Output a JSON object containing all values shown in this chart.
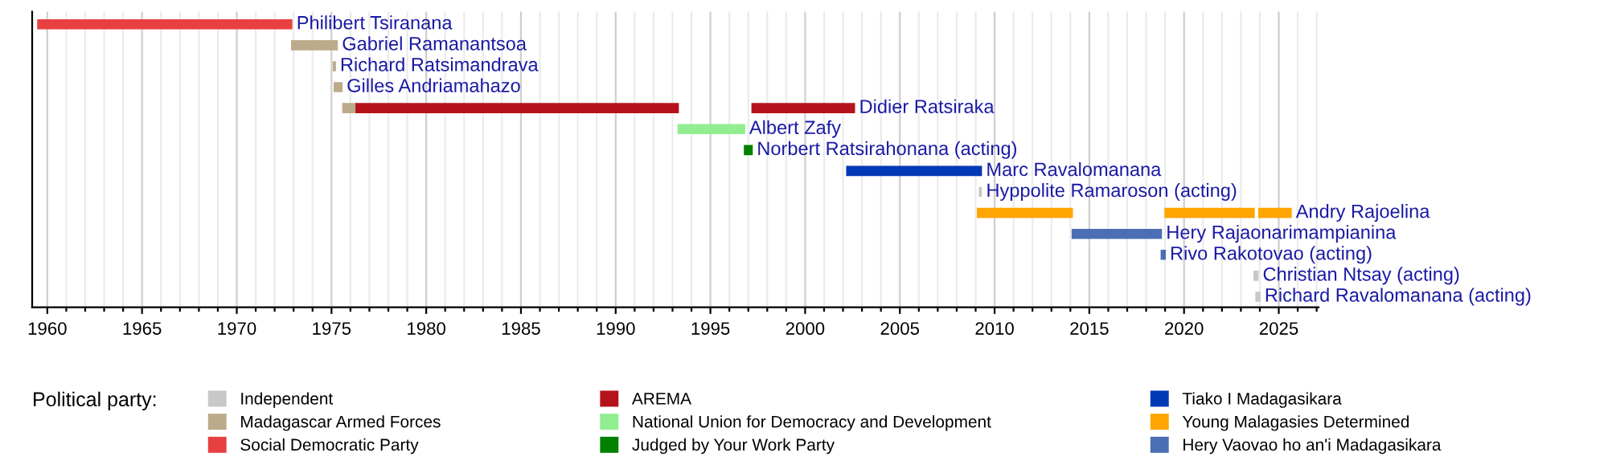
{
  "chart_data": {
    "type": "bar",
    "orientation": "horizontal",
    "categories": [
      "Philibert Tsiranana",
      "Gabriel Ramanantsoa",
      "Richard Ratsimandrava",
      "Gilles Andriamahazo",
      "Didier Ratsiraka",
      "Albert Zafy",
      "Norbert Ratsirahonana (acting)",
      "Marc Ravalomanana",
      "Hyppolite Ramaroson (acting)",
      "Andry Rajoelina",
      "Hery Rajaonarimampianina",
      "Rivo Rakotovao (acting)",
      "Christian Ntsay (acting)",
      "Richard Ravalomanana (acting)"
    ],
    "series": [
      {
        "name": "Independent",
        "color": "#c8c8c8",
        "base": [
          null,
          null,
          null,
          null,
          null,
          null,
          null,
          null,
          2009.2,
          null,
          null,
          null,
          2023.7,
          2023.8
        ],
        "values": [
          null,
          null,
          null,
          null,
          null,
          null,
          null,
          null,
          0.1,
          null,
          null,
          null,
          0.2,
          0.2
        ]
      },
      {
        "name": "Madagascar Armed Forces",
        "color": "#bcab8b",
        "base": [
          null,
          1972.9,
          1975.1,
          1975.15,
          1975.6,
          null,
          null,
          null,
          null,
          null,
          null,
          null,
          null,
          null
        ],
        "values": [
          null,
          2.4,
          0.1,
          0.4,
          0.7,
          null,
          null,
          null,
          null,
          null,
          null,
          null,
          null,
          null
        ]
      },
      {
        "name": "Social Democratic Party",
        "color": "#e84040",
        "base": [
          1959.5,
          null,
          null,
          null,
          null,
          null,
          null,
          null,
          null,
          null,
          null,
          null,
          null,
          null
        ],
        "values": [
          13.4,
          null,
          null,
          null,
          null,
          null,
          null,
          null,
          null,
          null,
          null,
          null,
          null,
          null
        ]
      },
      {
        "name": "AREMA",
        "color": "#b5121b",
        "base": [
          null,
          null,
          null,
          null,
          1976.3,
          null,
          null,
          null,
          null,
          null,
          null,
          null,
          null,
          null
        ],
        "values": [
          null,
          null,
          null,
          null,
          17.0,
          null,
          null,
          null,
          null,
          null,
          null,
          null,
          null,
          null
        ]
      },
      {
        "color": "#b5121b",
        "base": [
          null,
          null,
          null,
          null,
          1997.2,
          null,
          null,
          null,
          null,
          null,
          null,
          null,
          null,
          null
        ],
        "values": [
          null,
          null,
          null,
          null,
          5.4,
          null,
          null,
          null,
          null,
          null,
          null,
          null,
          null,
          null
        ]
      },
      {
        "name": "National Union for Democracy and Development",
        "color": "#90ee90",
        "base": [
          null,
          null,
          null,
          null,
          null,
          1993.3,
          null,
          null,
          null,
          null,
          null,
          null,
          null,
          null
        ],
        "values": [
          null,
          null,
          null,
          null,
          null,
          3.5,
          null,
          null,
          null,
          null,
          null,
          null,
          null,
          null
        ]
      },
      {
        "name": "Judged by Your Work Party",
        "color": "#008000",
        "base": [
          null,
          null,
          null,
          null,
          null,
          null,
          1996.8,
          null,
          null,
          null,
          null,
          null,
          null,
          null
        ],
        "values": [
          null,
          null,
          null,
          null,
          null,
          null,
          0.4,
          null,
          null,
          null,
          null,
          null,
          null,
          null
        ]
      },
      {
        "name": "Tiako I Madagasikara",
        "color": "#0039b5",
        "base": [
          null,
          null,
          null,
          null,
          null,
          null,
          null,
          2002.2,
          null,
          null,
          null,
          null,
          null,
          null
        ],
        "values": [
          null,
          null,
          null,
          null,
          null,
          null,
          null,
          7.1,
          null,
          null,
          null,
          null,
          null,
          null
        ]
      },
      {
        "name": "Young Malagasies Determined",
        "color": "#ffa500",
        "base": [
          null,
          null,
          null,
          null,
          null,
          null,
          null,
          null,
          null,
          2009.1,
          null,
          null,
          null,
          null
        ],
        "values": [
          null,
          null,
          null,
          null,
          null,
          null,
          null,
          null,
          null,
          5.0,
          null,
          null,
          null,
          null
        ]
      },
      {
        "color": "#ffa500",
        "base": [
          null,
          null,
          null,
          null,
          null,
          null,
          null,
          null,
          null,
          2019.0,
          null,
          null,
          null,
          null
        ],
        "values": [
          null,
          null,
          null,
          null,
          null,
          null,
          null,
          null,
          null,
          4.7,
          null,
          null,
          null,
          null
        ]
      },
      {
        "color": "#ffa500",
        "base": [
          null,
          null,
          null,
          null,
          null,
          null,
          null,
          null,
          null,
          2023.95,
          null,
          null,
          null,
          null
        ],
        "values": [
          null,
          null,
          null,
          null,
          null,
          null,
          null,
          null,
          null,
          1.7,
          null,
          null,
          null,
          null
        ]
      },
      {
        "name": "Hery Vaovao ho an'i Madagasikara",
        "color": "#4a6fb5",
        "base": [
          null,
          null,
          null,
          null,
          null,
          null,
          null,
          null,
          null,
          null,
          2014.1,
          2018.8,
          null,
          null
        ],
        "values": [
          null,
          null,
          null,
          null,
          null,
          null,
          null,
          null,
          null,
          null,
          4.7,
          0.2,
          null,
          null
        ]
      }
    ],
    "xlim": [
      1959.2,
      2027.1
    ],
    "xticks": [
      1960,
      {
        "value": 1961,
        "label": null
      },
      {
        "value": 1962,
        "label": null
      },
      {
        "value": 1963,
        "label": null
      },
      {
        "value": 1964,
        "label": null
      },
      1965,
      {
        "value": 1966,
        "label": null
      },
      {
        "value": 1967,
        "label": null
      },
      {
        "value": 1968,
        "label": null
      },
      {
        "value": 1969,
        "label": null
      },
      1970,
      {
        "value": 1971,
        "label": null
      },
      {
        "value": 1972,
        "label": null
      },
      {
        "value": 1973,
        "label": null
      },
      {
        "value": 1974,
        "label": null
      },
      1975,
      {
        "value": 1976,
        "label": null
      },
      {
        "value": 1977,
        "label": null
      },
      {
        "value": 1978,
        "label": null
      },
      {
        "value": 1979,
        "label": null
      },
      1980,
      {
        "value": 1981,
        "label": null
      },
      {
        "value": 1982,
        "label": null
      },
      {
        "value": 1983,
        "label": null
      },
      {
        "value": 1984,
        "label": null
      },
      1985,
      {
        "value": 1986,
        "label": null
      },
      {
        "value": 1987,
        "label": null
      },
      {
        "value": 1988,
        "label": null
      },
      {
        "value": 1989,
        "label": null
      },
      1990,
      {
        "value": 1991,
        "label": null
      },
      {
        "value": 1992,
        "label": null
      },
      {
        "value": 1993,
        "label": null
      },
      {
        "value": 1994,
        "label": null
      },
      1995,
      {
        "value": 1996,
        "label": null
      },
      {
        "value": 1997,
        "label": null
      },
      {
        "value": 1998,
        "label": null
      },
      {
        "value": 1999,
        "label": null
      },
      2000,
      {
        "value": 2001,
        "label": null
      },
      {
        "value": 2002,
        "label": null
      },
      {
        "value": 2003,
        "label": null
      },
      {
        "value": 2004,
        "label": null
      },
      2005,
      {
        "value": 2006,
        "label": null
      },
      {
        "value": 2007,
        "label": null
      },
      {
        "value": 2008,
        "label": null
      },
      {
        "value": 2009,
        "label": null
      },
      2010,
      {
        "value": 2011,
        "label": null
      },
      {
        "value": 2012,
        "label": null
      },
      {
        "value": 2013,
        "label": null
      },
      {
        "value": 2014,
        "label": null
      },
      2015,
      {
        "value": 2016,
        "label": null
      },
      {
        "value": 2017,
        "label": null
      },
      {
        "value": 2018,
        "label": null
      },
      {
        "value": 2019,
        "label": null
      },
      2020,
      {
        "value": 2021,
        "label": null
      },
      {
        "value": 2022,
        "label": null
      },
      {
        "value": 2023,
        "label": null
      },
      {
        "value": 2024,
        "label": null
      },
      2025,
      {
        "value": 2026,
        "label": null
      },
      {
        "value": 2027,
        "label": null
      }
    ],
    "grid": "x",
    "tick_labels": "x",
    "legend": "bottom",
    "legend_title": "Political party:"
  }
}
